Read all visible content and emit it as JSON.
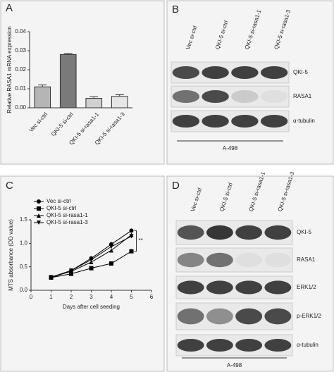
{
  "panels": [
    "A",
    "B",
    "C",
    "D"
  ],
  "chart_data": [
    {
      "type": "bar",
      "y_label": "Relative RASA1 mRNA expression",
      "categories": [
        "Vec si-ctrl",
        "QKI-5 si-ctrl",
        "QKI-5 si-rasa1-1",
        "QKI-5 si-rasa1-3"
      ],
      "values": [
        0.011,
        0.028,
        0.005,
        0.006
      ],
      "errors": [
        0.001,
        0.0006,
        0.0008,
        0.0009
      ],
      "colors": [
        "#b5b5b5",
        "#7a7a7a",
        "#d0d0d0",
        "#e6e6e6"
      ],
      "ylim": [
        0,
        0.04
      ],
      "yticks": [
        {
          "value": 0,
          "label": "0.00"
        },
        {
          "value": 0.01,
          "label": "0.01"
        },
        {
          "value": 0.02,
          "label": "0.02"
        },
        {
          "value": 0.03,
          "label": "0.03"
        },
        {
          "value": 0.04,
          "label": "0.04"
        }
      ]
    },
    {
      "type": "line",
      "x_label": "Days after cell seeding",
      "y_label": "MTS absorbance (OD value)",
      "x": [
        1,
        2,
        3,
        4,
        5
      ],
      "series": [
        {
          "name": "Vec si-ctrl",
          "color": "#000000",
          "marker": "circle",
          "values": [
            0.27,
            0.42,
            0.68,
            0.98,
            1.27
          ]
        },
        {
          "name": "QKI-5 si-ctrl",
          "color": "#000000",
          "marker": "square",
          "values": [
            0.27,
            0.35,
            0.47,
            0.57,
            0.83
          ]
        },
        {
          "name": "QKI-5 si-rasa1-1",
          "color": "#000000",
          "marker": "triangle-up",
          "values": [
            0.28,
            0.4,
            0.6,
            0.85,
            1.18
          ]
        },
        {
          "name": "QKI-5 si-rasa1-3",
          "color": "#000000",
          "marker": "triangle-down",
          "values": [
            0.28,
            0.42,
            0.65,
            0.93,
            1.15
          ]
        }
      ],
      "xlim": [
        0,
        6
      ],
      "xticks": [
        0,
        1,
        2,
        3,
        4,
        5,
        6
      ],
      "ylim": [
        0,
        1.5
      ],
      "yticks": [
        {
          "value": 0,
          "label": "0.0"
        },
        {
          "value": 0.5,
          "label": "0.5"
        },
        {
          "value": 1,
          "label": "1.0"
        },
        {
          "value": 1.5,
          "label": "1.5"
        }
      ],
      "annotation": "**"
    }
  ],
  "blots": [
    {
      "columns": [
        "Vec si-ctrl",
        "QKI-5 si-ctrl",
        "QKI-5 si-rasa1-1",
        "QKI-5 si-rasa1-3"
      ],
      "rows": [
        "QKI-5",
        "RASA1",
        "α-tubulin"
      ],
      "cell_line": "A-498"
    },
    {
      "columns": [
        "Vec si-ctrl",
        "QKI-5 si-ctrl",
        "QKI-5 si-rasa1-1",
        "QKI-5 si-rasa1-3"
      ],
      "rows": [
        "QKI-5",
        "RASA1",
        "ERK1/2",
        "p-ERK1/2",
        "α-tubulin"
      ],
      "cell_line": "A-498"
    }
  ]
}
